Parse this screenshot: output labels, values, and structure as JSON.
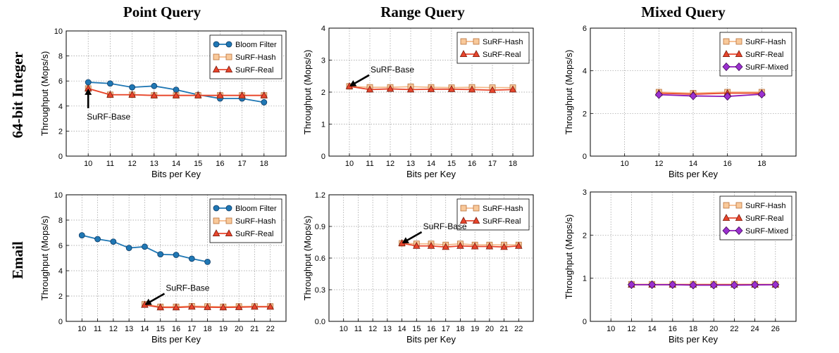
{
  "column_titles": [
    "Point Query",
    "Range Query",
    "Mixed Query"
  ],
  "row_titles": [
    "64-bit Integer",
    "Email"
  ],
  "styles": {
    "Bloom Filter": {
      "color": "#1f77b4",
      "marker": "circle",
      "fill": "#1f77b4"
    },
    "SuRF-Hash": {
      "color": "#f4b98a",
      "marker": "square",
      "fill": "#f9c99a"
    },
    "SuRF-Real": {
      "color": "#e8452c",
      "marker": "triangle",
      "fill": "#e8452c"
    },
    "SuRF-Mixed": {
      "color": "#8b18b8",
      "marker": "diamond",
      "fill": "#9b30d0"
    }
  },
  "chart_data": [
    {
      "type": "line",
      "xlabel": "Bits per Key",
      "ylabel": "Throughput (Mops/s)",
      "xticks": [
        10,
        11,
        12,
        13,
        14,
        15,
        16,
        17,
        18
      ],
      "xlim": [
        9,
        19
      ],
      "ylim": [
        0,
        10
      ],
      "yticks": [
        "0",
        "2",
        "4",
        "6",
        "8",
        "10"
      ],
      "legend_position": "top-right",
      "series": [
        {
          "name": "Bloom Filter",
          "x": [
            10,
            11,
            12,
            13,
            14,
            15,
            16,
            17,
            18
          ],
          "y": [
            5.9,
            5.8,
            5.5,
            5.6,
            5.3,
            4.9,
            4.6,
            4.6,
            4.3
          ]
        },
        {
          "name": "SuRF-Hash",
          "x": [
            10,
            11,
            12,
            13,
            14,
            15,
            16,
            17,
            18
          ],
          "y": [
            5.4,
            4.9,
            4.9,
            4.85,
            4.85,
            4.85,
            4.85,
            4.85,
            4.85
          ]
        },
        {
          "name": "SuRF-Real",
          "x": [
            10,
            11,
            12,
            13,
            14,
            15,
            16,
            17,
            18
          ],
          "y": [
            5.4,
            4.9,
            4.9,
            4.85,
            4.85,
            4.85,
            4.85,
            4.85,
            4.85
          ]
        }
      ],
      "annotation": {
        "text": "SuRF-Base",
        "x": 10,
        "y": 5.4
      }
    },
    {
      "type": "line",
      "xlabel": "Bits per Key",
      "ylabel": "Throughput (Mops/s)",
      "xticks": [
        10,
        11,
        12,
        13,
        14,
        15,
        16,
        17,
        18
      ],
      "xlim": [
        9,
        19
      ],
      "ylim": [
        0,
        4
      ],
      "yticks": [
        "0",
        "1",
        "2",
        "3",
        "4"
      ],
      "legend_position": "top-right",
      "series": [
        {
          "name": "SuRF-Hash",
          "x": [
            10,
            11,
            12,
            13,
            14,
            15,
            16,
            17,
            18
          ],
          "y": [
            2.18,
            2.15,
            2.15,
            2.17,
            2.15,
            2.14,
            2.15,
            2.14,
            2.14
          ]
        },
        {
          "name": "SuRF-Real",
          "x": [
            10,
            11,
            12,
            13,
            14,
            15,
            16,
            17,
            18
          ],
          "y": [
            2.18,
            2.08,
            2.1,
            2.08,
            2.09,
            2.09,
            2.08,
            2.06,
            2.08
          ]
        }
      ],
      "annotation": {
        "text": "SuRF-Base",
        "x": 10,
        "y": 2.18
      }
    },
    {
      "type": "line",
      "xlabel": "Bits per Key",
      "ylabel": "Throughput (Mops/s)",
      "xticks": [
        10,
        12,
        14,
        16,
        18
      ],
      "xlim": [
        8,
        20
      ],
      "ylim": [
        0,
        6
      ],
      "yticks": [
        "0",
        "2",
        "4",
        "6"
      ],
      "legend_position": "top-right",
      "series": [
        {
          "name": "SuRF-Hash",
          "x": [
            12,
            14,
            16,
            18
          ],
          "y": [
            3.0,
            2.95,
            3.0,
            3.0
          ]
        },
        {
          "name": "SuRF-Real",
          "x": [
            12,
            14,
            16,
            18
          ],
          "y": [
            2.95,
            2.9,
            2.95,
            2.95
          ]
        },
        {
          "name": "SuRF-Mixed",
          "x": [
            12,
            14,
            16,
            18
          ],
          "y": [
            2.88,
            2.82,
            2.8,
            2.9
          ]
        }
      ]
    },
    {
      "type": "line",
      "xlabel": "Bits per Key",
      "ylabel": "Throughput (Mops/s)",
      "xticks": [
        10,
        11,
        12,
        13,
        14,
        15,
        16,
        17,
        18,
        19,
        20,
        21,
        22
      ],
      "xlim": [
        9,
        23
      ],
      "ylim": [
        0,
        10
      ],
      "yticks": [
        "0",
        "2",
        "4",
        "6",
        "8",
        "10"
      ],
      "legend_position": "top-right",
      "series": [
        {
          "name": "Bloom Filter",
          "x": [
            10,
            11,
            12,
            13,
            14,
            15,
            16,
            17,
            18
          ],
          "y": [
            6.8,
            6.5,
            6.3,
            5.8,
            5.9,
            5.3,
            5.25,
            4.95,
            4.7
          ]
        },
        {
          "name": "SuRF-Hash",
          "x": [
            14,
            15,
            16,
            17,
            18,
            19,
            20,
            21,
            22
          ],
          "y": [
            1.35,
            1.15,
            1.15,
            1.2,
            1.18,
            1.15,
            1.18,
            1.18,
            1.18
          ]
        },
        {
          "name": "SuRF-Real",
          "x": [
            14,
            15,
            16,
            17,
            18,
            19,
            20,
            21,
            22
          ],
          "y": [
            1.3,
            1.1,
            1.1,
            1.15,
            1.12,
            1.1,
            1.12,
            1.15,
            1.15
          ]
        }
      ],
      "annotation": {
        "text": "SuRF-Base",
        "x": 14,
        "y": 1.3
      }
    },
    {
      "type": "line",
      "xlabel": "Bits per Key",
      "ylabel": "Throughput (Mops/s)",
      "xticks": [
        10,
        11,
        12,
        13,
        14,
        15,
        16,
        17,
        18,
        19,
        20,
        21,
        22
      ],
      "xlim": [
        9,
        23
      ],
      "ylim": [
        0,
        1.2
      ],
      "yticks": [
        "0.0",
        "0.3",
        "0.6",
        "0.9",
        "1.2"
      ],
      "legend_position": "top-right",
      "series": [
        {
          "name": "SuRF-Hash",
          "x": [
            14,
            15,
            16,
            17,
            18,
            19,
            20,
            21,
            22
          ],
          "y": [
            0.74,
            0.735,
            0.735,
            0.725,
            0.735,
            0.725,
            0.725,
            0.725,
            0.725
          ]
        },
        {
          "name": "SuRF-Real",
          "x": [
            14,
            15,
            16,
            17,
            18,
            19,
            20,
            21,
            22
          ],
          "y": [
            0.74,
            0.715,
            0.715,
            0.705,
            0.715,
            0.71,
            0.71,
            0.705,
            0.715
          ]
        }
      ],
      "annotation": {
        "text": "SuRF-Base",
        "x": 14,
        "y": 0.74
      }
    },
    {
      "type": "line",
      "xlabel": "Bits per Key",
      "ylabel": "Throughput (Mops/s)",
      "xticks": [
        10,
        12,
        14,
        16,
        18,
        20,
        22,
        24,
        26
      ],
      "xlim": [
        8,
        28
      ],
      "ylim": [
        0,
        3
      ],
      "yticks": [
        "0",
        "1",
        "2",
        "3"
      ],
      "legend_position": "top-right",
      "series": [
        {
          "name": "SuRF-Hash",
          "x": [
            12,
            14,
            16,
            18,
            20,
            22,
            24,
            26
          ],
          "y": [
            0.86,
            0.86,
            0.86,
            0.86,
            0.86,
            0.86,
            0.86,
            0.86
          ]
        },
        {
          "name": "SuRF-Real",
          "x": [
            12,
            14,
            16,
            18,
            20,
            22,
            24,
            26
          ],
          "y": [
            0.85,
            0.85,
            0.85,
            0.85,
            0.85,
            0.85,
            0.85,
            0.85
          ]
        },
        {
          "name": "SuRF-Mixed",
          "x": [
            12,
            14,
            16,
            18,
            20,
            22,
            24,
            26
          ],
          "y": [
            0.85,
            0.85,
            0.85,
            0.84,
            0.84,
            0.84,
            0.845,
            0.85
          ]
        }
      ]
    }
  ]
}
